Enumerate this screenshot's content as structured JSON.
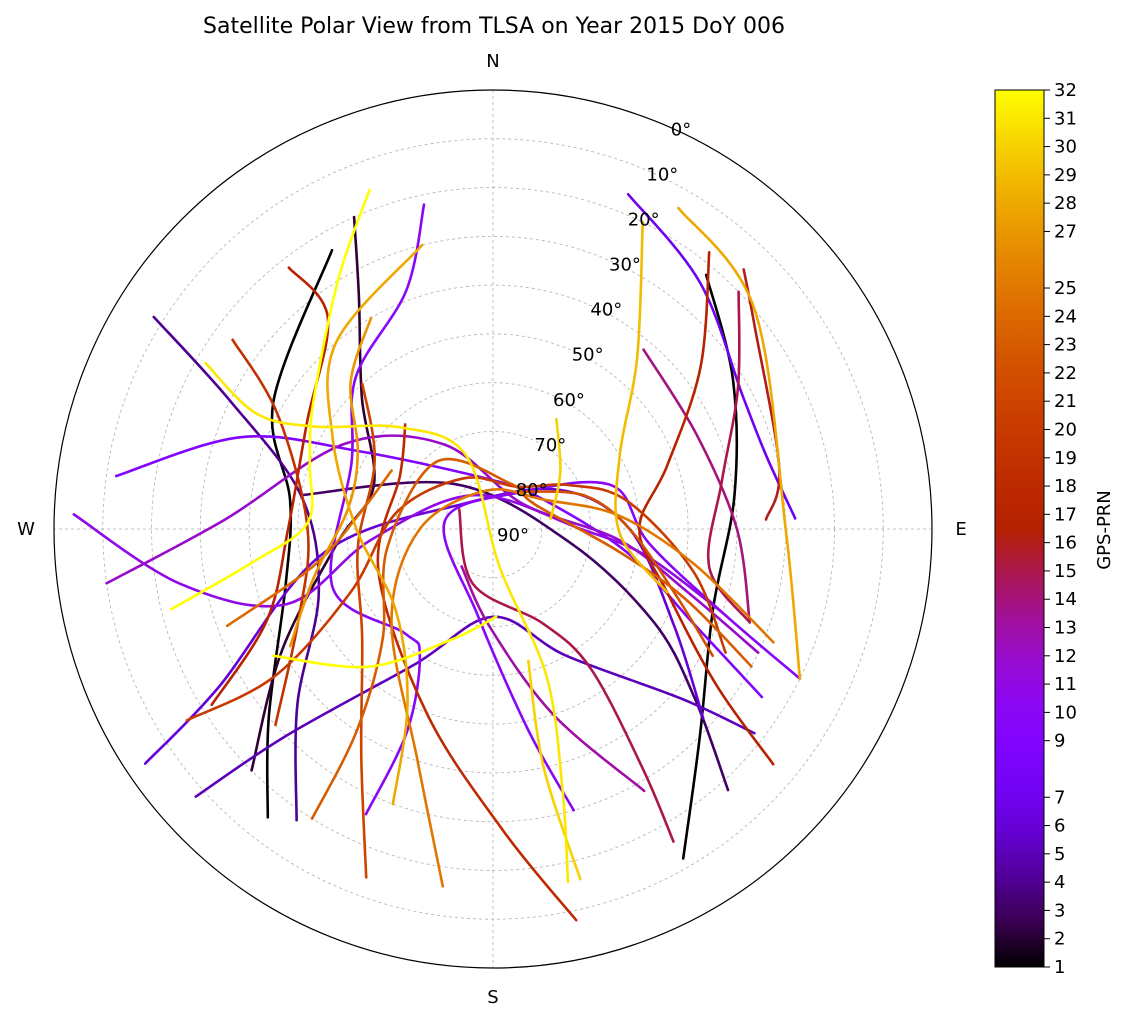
{
  "chart_data": {
    "type": "polar-skyplot",
    "title": "Satellite Polar View from TLSA on Year 2015 DoY 006",
    "direction_labels": {
      "north": "N",
      "east": "E",
      "south": "S",
      "west": "W"
    },
    "radial_axis": {
      "quantity": "elevation (deg)",
      "range": [
        0,
        90
      ],
      "ticks": [
        0,
        10,
        20,
        30,
        40,
        50,
        60,
        70,
        80,
        90
      ],
      "tick_labels": [
        "0°",
        "10°",
        "20°",
        "30°",
        "40°",
        "50°",
        "60°",
        "70°",
        "80°",
        "90°"
      ]
    },
    "grid": true,
    "colorbar": {
      "label": "GPS-PRN",
      "colormap": "gnuplot",
      "range": [
        1,
        32
      ],
      "tick_values": [
        1,
        2,
        3,
        4,
        5,
        6,
        7,
        9,
        10,
        11,
        12,
        13,
        14,
        15,
        16,
        17,
        18,
        19,
        20,
        21,
        22,
        23,
        24,
        25,
        27,
        28,
        29,
        30,
        31,
        32
      ],
      "tick_labels": [
        "1",
        "2",
        "3",
        "4",
        "5",
        "6",
        "7",
        "9",
        "10",
        "11",
        "12",
        "13",
        "14",
        "15",
        "16",
        "17",
        "18",
        "19",
        "20",
        "21",
        "22",
        "23",
        "24",
        "25",
        "27",
        "28",
        "29",
        "30",
        "31",
        "32"
      ],
      "placement": "right"
    },
    "series": [
      {
        "prn": 1,
        "points": [
          [
            330,
            24
          ],
          [
            300,
            38
          ],
          [
            278,
            48
          ],
          [
            255,
            46
          ],
          [
            230,
            30
          ],
          [
            218,
            15
          ]
        ]
      },
      {
        "prn": 1,
        "points": [
          [
            40,
            22
          ],
          [
            58,
            32
          ],
          [
            82,
            40
          ],
          [
            110,
            42
          ],
          [
            135,
            30
          ],
          [
            150,
            12
          ]
        ]
      },
      {
        "prn": 2,
        "points": [
          [
            336,
            20
          ],
          [
            330,
            35
          ],
          [
            315,
            52
          ],
          [
            290,
            64
          ],
          [
            265,
            58
          ],
          [
            240,
            40
          ],
          [
            225,
            20
          ]
        ]
      },
      {
        "prn": 3,
        "points": [
          [
            280,
            50
          ],
          [
            320,
            78
          ],
          [
            100,
            74
          ],
          [
            120,
            52
          ],
          [
            130,
            36
          ],
          [
            138,
            18
          ]
        ]
      },
      {
        "prn": 4,
        "points": [
          [
            302,
            8
          ],
          [
            296,
            30
          ],
          [
            280,
            50
          ],
          [
            250,
            52
          ],
          [
            228,
            36
          ],
          [
            214,
            18
          ]
        ]
      },
      {
        "prn": 5,
        "points": [
          [
            228,
            8
          ],
          [
            225,
            30
          ],
          [
            210,
            58
          ],
          [
            180,
            72
          ],
          [
            150,
            60
          ],
          [
            132,
            38
          ],
          [
            128,
            22
          ]
        ]
      },
      {
        "prn": 6,
        "points": [
          [
            236,
            4
          ],
          [
            240,
            25
          ],
          [
            262,
            55
          ],
          [
            310,
            82
          ],
          [
            60,
            74
          ],
          [
            90,
            62
          ],
          [
            118,
            48
          ],
          [
            132,
            32
          ]
        ]
      },
      {
        "prn": 7,
        "points": [
          [
            22,
            16
          ],
          [
            40,
            24
          ],
          [
            62,
            32
          ],
          [
            75,
            32
          ],
          [
            88,
            28
          ]
        ]
      },
      {
        "prn": 9,
        "points": [
          [
            278,
            12
          ],
          [
            290,
            35
          ],
          [
            300,
            58
          ],
          [
            0,
            80
          ],
          [
            60,
            78
          ],
          [
            100,
            62
          ],
          [
            115,
            45
          ],
          [
            122,
            25
          ]
        ]
      },
      {
        "prn": 10,
        "points": [
          [
            204,
            26
          ],
          [
            203,
            45
          ],
          [
            210,
            60
          ],
          [
            220,
            62
          ],
          [
            250,
            55
          ],
          [
            295,
            58
          ],
          [
            318,
            48
          ],
          [
            340,
            38
          ],
          [
            348,
            22
          ]
        ]
      },
      {
        "prn": 10,
        "points": [
          [
            164,
            30
          ],
          [
            170,
            48
          ],
          [
            190,
            72
          ],
          [
            280,
            80
          ],
          [
            40,
            80
          ],
          [
            70,
            64
          ],
          [
            95,
            58
          ],
          [
            110,
            40
          ],
          [
            116,
            20
          ]
        ]
      },
      {
        "prn": 11,
        "points": [
          [
            272,
            4
          ],
          [
            260,
            25
          ],
          [
            250,
            45
          ],
          [
            265,
            65
          ],
          [
            330,
            82
          ],
          [
            90,
            72
          ],
          [
            100,
            58
          ],
          [
            110,
            40
          ]
        ]
      },
      {
        "prn": 12,
        "points": [
          [
            262,
            10
          ],
          [
            272,
            35
          ],
          [
            300,
            55
          ],
          [
            330,
            70
          ],
          [
            50,
            82
          ],
          [
            95,
            64
          ],
          [
            108,
            48
          ],
          [
            115,
            30
          ]
        ]
      },
      {
        "prn": 13,
        "points": [
          [
            150,
            28
          ],
          [
            162,
            50
          ],
          [
            182,
            70
          ],
          [
            220,
            80
          ]
        ]
      },
      {
        "prn": 14,
        "points": [
          [
            40,
            42
          ],
          [
            65,
            44
          ],
          [
            90,
            40
          ],
          [
            110,
            34
          ]
        ]
      },
      {
        "prn": 15,
        "points": [
          [
            150,
            16
          ],
          [
            148,
            32
          ],
          [
            145,
            55
          ],
          [
            152,
            68
          ],
          [
            200,
            78
          ],
          [
            300,
            82
          ]
        ]
      },
      {
        "prn": 15,
        "points": [
          [
            46,
            20
          ],
          [
            60,
            32
          ],
          [
            78,
            42
          ],
          [
            100,
            45
          ],
          [
            110,
            34
          ]
        ]
      },
      {
        "prn": 16,
        "points": [
          [
            44,
            16
          ],
          [
            52,
            22
          ],
          [
            78,
            30
          ],
          [
            88,
            34
          ]
        ]
      },
      {
        "prn": 17,
        "points": [
          [
            322,
            22
          ],
          [
            322,
            35
          ],
          [
            300,
            46
          ],
          [
            270,
            48
          ],
          [
            248,
            40
          ],
          [
            238,
            22
          ]
        ]
      },
      {
        "prn": 17,
        "points": [
          [
            38,
            18
          ],
          [
            52,
            36
          ],
          [
            70,
            52
          ],
          [
            90,
            60
          ],
          [
            110,
            52
          ],
          [
            125,
            34
          ],
          [
            130,
            15
          ]
        ]
      },
      {
        "prn": 18,
        "points": [
          [
            168,
            8
          ],
          [
            178,
            28
          ],
          [
            200,
            50
          ],
          [
            250,
            65
          ],
          [
            300,
            68
          ],
          [
            320,
            62
          ]
        ]
      },
      {
        "prn": 19,
        "points": [
          [
            306,
            24
          ],
          [
            298,
            40
          ],
          [
            270,
            52
          ],
          [
            245,
            46
          ],
          [
            228,
            30
          ]
        ]
      },
      {
        "prn": 20,
        "points": [
          [
            238,
            16
          ],
          [
            236,
            36
          ],
          [
            246,
            58
          ],
          [
            280,
            70
          ],
          [
            330,
            78
          ],
          [
            30,
            80
          ],
          [
            60,
            72
          ],
          [
            78,
            62
          ],
          [
            102,
            48
          ],
          [
            118,
            36
          ]
        ]
      },
      {
        "prn": 21,
        "points": [
          [
            200,
            14
          ],
          [
            210,
            36
          ],
          [
            230,
            55
          ],
          [
            262,
            62
          ],
          [
            300,
            62
          ],
          [
            318,
            50
          ]
        ]
      },
      {
        "prn": 22,
        "points": [
          [
            120,
            38
          ],
          [
            110,
            50
          ],
          [
            90,
            62
          ],
          [
            70,
            70
          ],
          [
            40,
            80
          ]
        ]
      },
      {
        "prn": 23,
        "points": [
          [
            212,
            20
          ],
          [
            214,
            40
          ],
          [
            225,
            58
          ],
          [
            260,
            68
          ],
          [
            320,
            72
          ],
          [
            20,
            80
          ],
          [
            60,
            80
          ],
          [
            100,
            64
          ],
          [
            110,
            48
          ],
          [
            118,
            30
          ]
        ]
      },
      {
        "prn": 24,
        "points": [
          [
            250,
            32
          ],
          [
            258,
            52
          ],
          [
            275,
            62
          ],
          [
            300,
            66
          ]
        ]
      },
      {
        "prn": 25,
        "points": [
          [
            188,
            16
          ],
          [
            198,
            40
          ],
          [
            228,
            62
          ],
          [
            270,
            75
          ],
          [
            350,
            82
          ],
          [
            60,
            78
          ],
          [
            84,
            64
          ],
          [
            100,
            48
          ],
          [
            112,
            28
          ]
        ]
      },
      {
        "prn": 27,
        "points": [
          [
            330,
            40
          ],
          [
            316,
            48
          ],
          [
            300,
            58
          ],
          [
            278,
            60
          ],
          [
            255,
            52
          ],
          [
            240,
            42
          ]
        ]
      },
      {
        "prn": 28,
        "points": [
          [
            346,
            30
          ],
          [
            320,
            40
          ],
          [
            300,
            52
          ],
          [
            270,
            62
          ],
          [
            230,
            64
          ],
          [
            206,
            50
          ],
          [
            200,
            30
          ]
        ]
      },
      {
        "prn": 28,
        "points": [
          [
            30,
            14
          ],
          [
            50,
            20
          ],
          [
            90,
            30
          ],
          [
            116,
            20
          ]
        ]
      },
      {
        "prn": 29,
        "points": [
          [
            26,
            20
          ],
          [
            40,
            44
          ],
          [
            60,
            60
          ],
          [
            92,
            64
          ],
          [
            110,
            52
          ]
        ]
      },
      {
        "prn": 30,
        "points": [
          [
            166,
            16
          ],
          [
            168,
            40
          ],
          [
            165,
            62
          ]
        ]
      },
      {
        "prn": 30,
        "points": [
          [
            30,
            64
          ],
          [
            50,
            72
          ],
          [
            80,
            78
          ]
        ]
      },
      {
        "prn": 31,
        "points": [
          [
            300,
            22
          ],
          [
            296,
            36
          ],
          [
            300,
            48
          ],
          [
            318,
            62
          ],
          [
            340,
            74
          ],
          [
            170,
            82
          ],
          [
            160,
            58
          ],
          [
            165,
            35
          ],
          [
            168,
            16
          ]
        ]
      },
      {
        "prn": 32,
        "points": [
          [
            340,
            16
          ],
          [
            328,
            30
          ],
          [
            305,
            45
          ],
          [
            290,
            50
          ],
          [
            272,
            52
          ],
          [
            262,
            40
          ],
          [
            256,
            22
          ]
        ]
      },
      {
        "prn": 32,
        "points": [
          [
            240,
            38
          ],
          [
            222,
            52
          ],
          [
            200,
            66
          ],
          [
            178,
            72
          ]
        ]
      }
    ]
  }
}
